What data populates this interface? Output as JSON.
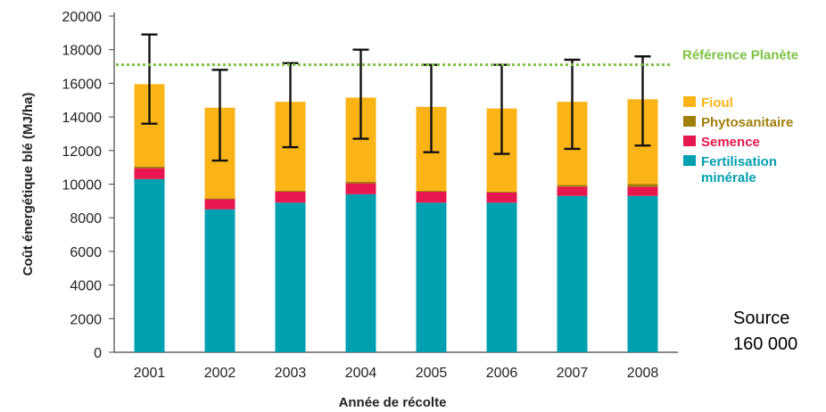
{
  "chart_data": {
    "type": "bar",
    "stacked": true,
    "categories": [
      "2001",
      "2002",
      "2003",
      "2004",
      "2005",
      "2006",
      "2007",
      "2008"
    ],
    "xlabel": "Année de récolte",
    "ylabel": "Coût énergétique blé (MJ/ha)",
    "ylim": [
      0,
      20000
    ],
    "yticks": [
      0,
      2000,
      4000,
      6000,
      8000,
      10000,
      12000,
      14000,
      16000,
      18000,
      20000
    ],
    "series": [
      {
        "name": "Fertilisation minérale",
        "color": "#00a0b0",
        "values": [
          10300,
          8500,
          8900,
          9400,
          8900,
          8900,
          9300,
          9300
        ]
      },
      {
        "name": "Semence",
        "color": "#e8174f",
        "values": [
          650,
          600,
          650,
          650,
          650,
          600,
          550,
          550
        ]
      },
      {
        "name": "Phytosanitaire",
        "color": "#a07f0a",
        "values": [
          100,
          50,
          50,
          100,
          50,
          50,
          100,
          150
        ]
      },
      {
        "name": "Fioul",
        "color": "#fbb416",
        "values": [
          4900,
          5400,
          5300,
          5000,
          5000,
          4950,
          4950,
          5050
        ]
      }
    ],
    "error_bars": {
      "low": [
        13600,
        11400,
        12200,
        12700,
        11900,
        11800,
        12100,
        12300
      ],
      "high": [
        18900,
        16800,
        17200,
        18000,
        17100,
        17100,
        17400,
        17600
      ]
    },
    "reference_line": {
      "label": "Référence Planète",
      "value": 17100,
      "color": "#7dc242"
    },
    "legend": {
      "position": "right",
      "items": [
        {
          "label": "Fioul",
          "color": "#fbb416"
        },
        {
          "label": "Phytosanitaire",
          "color": "#a07f0a"
        },
        {
          "label": "Semence",
          "color": "#e8174f"
        },
        {
          "label": "Fertilisation\nminérale",
          "color": "#00a0b0"
        }
      ]
    },
    "grid": false
  },
  "annotation": {
    "source_line1": "Source",
    "source_line2": "160 000"
  }
}
